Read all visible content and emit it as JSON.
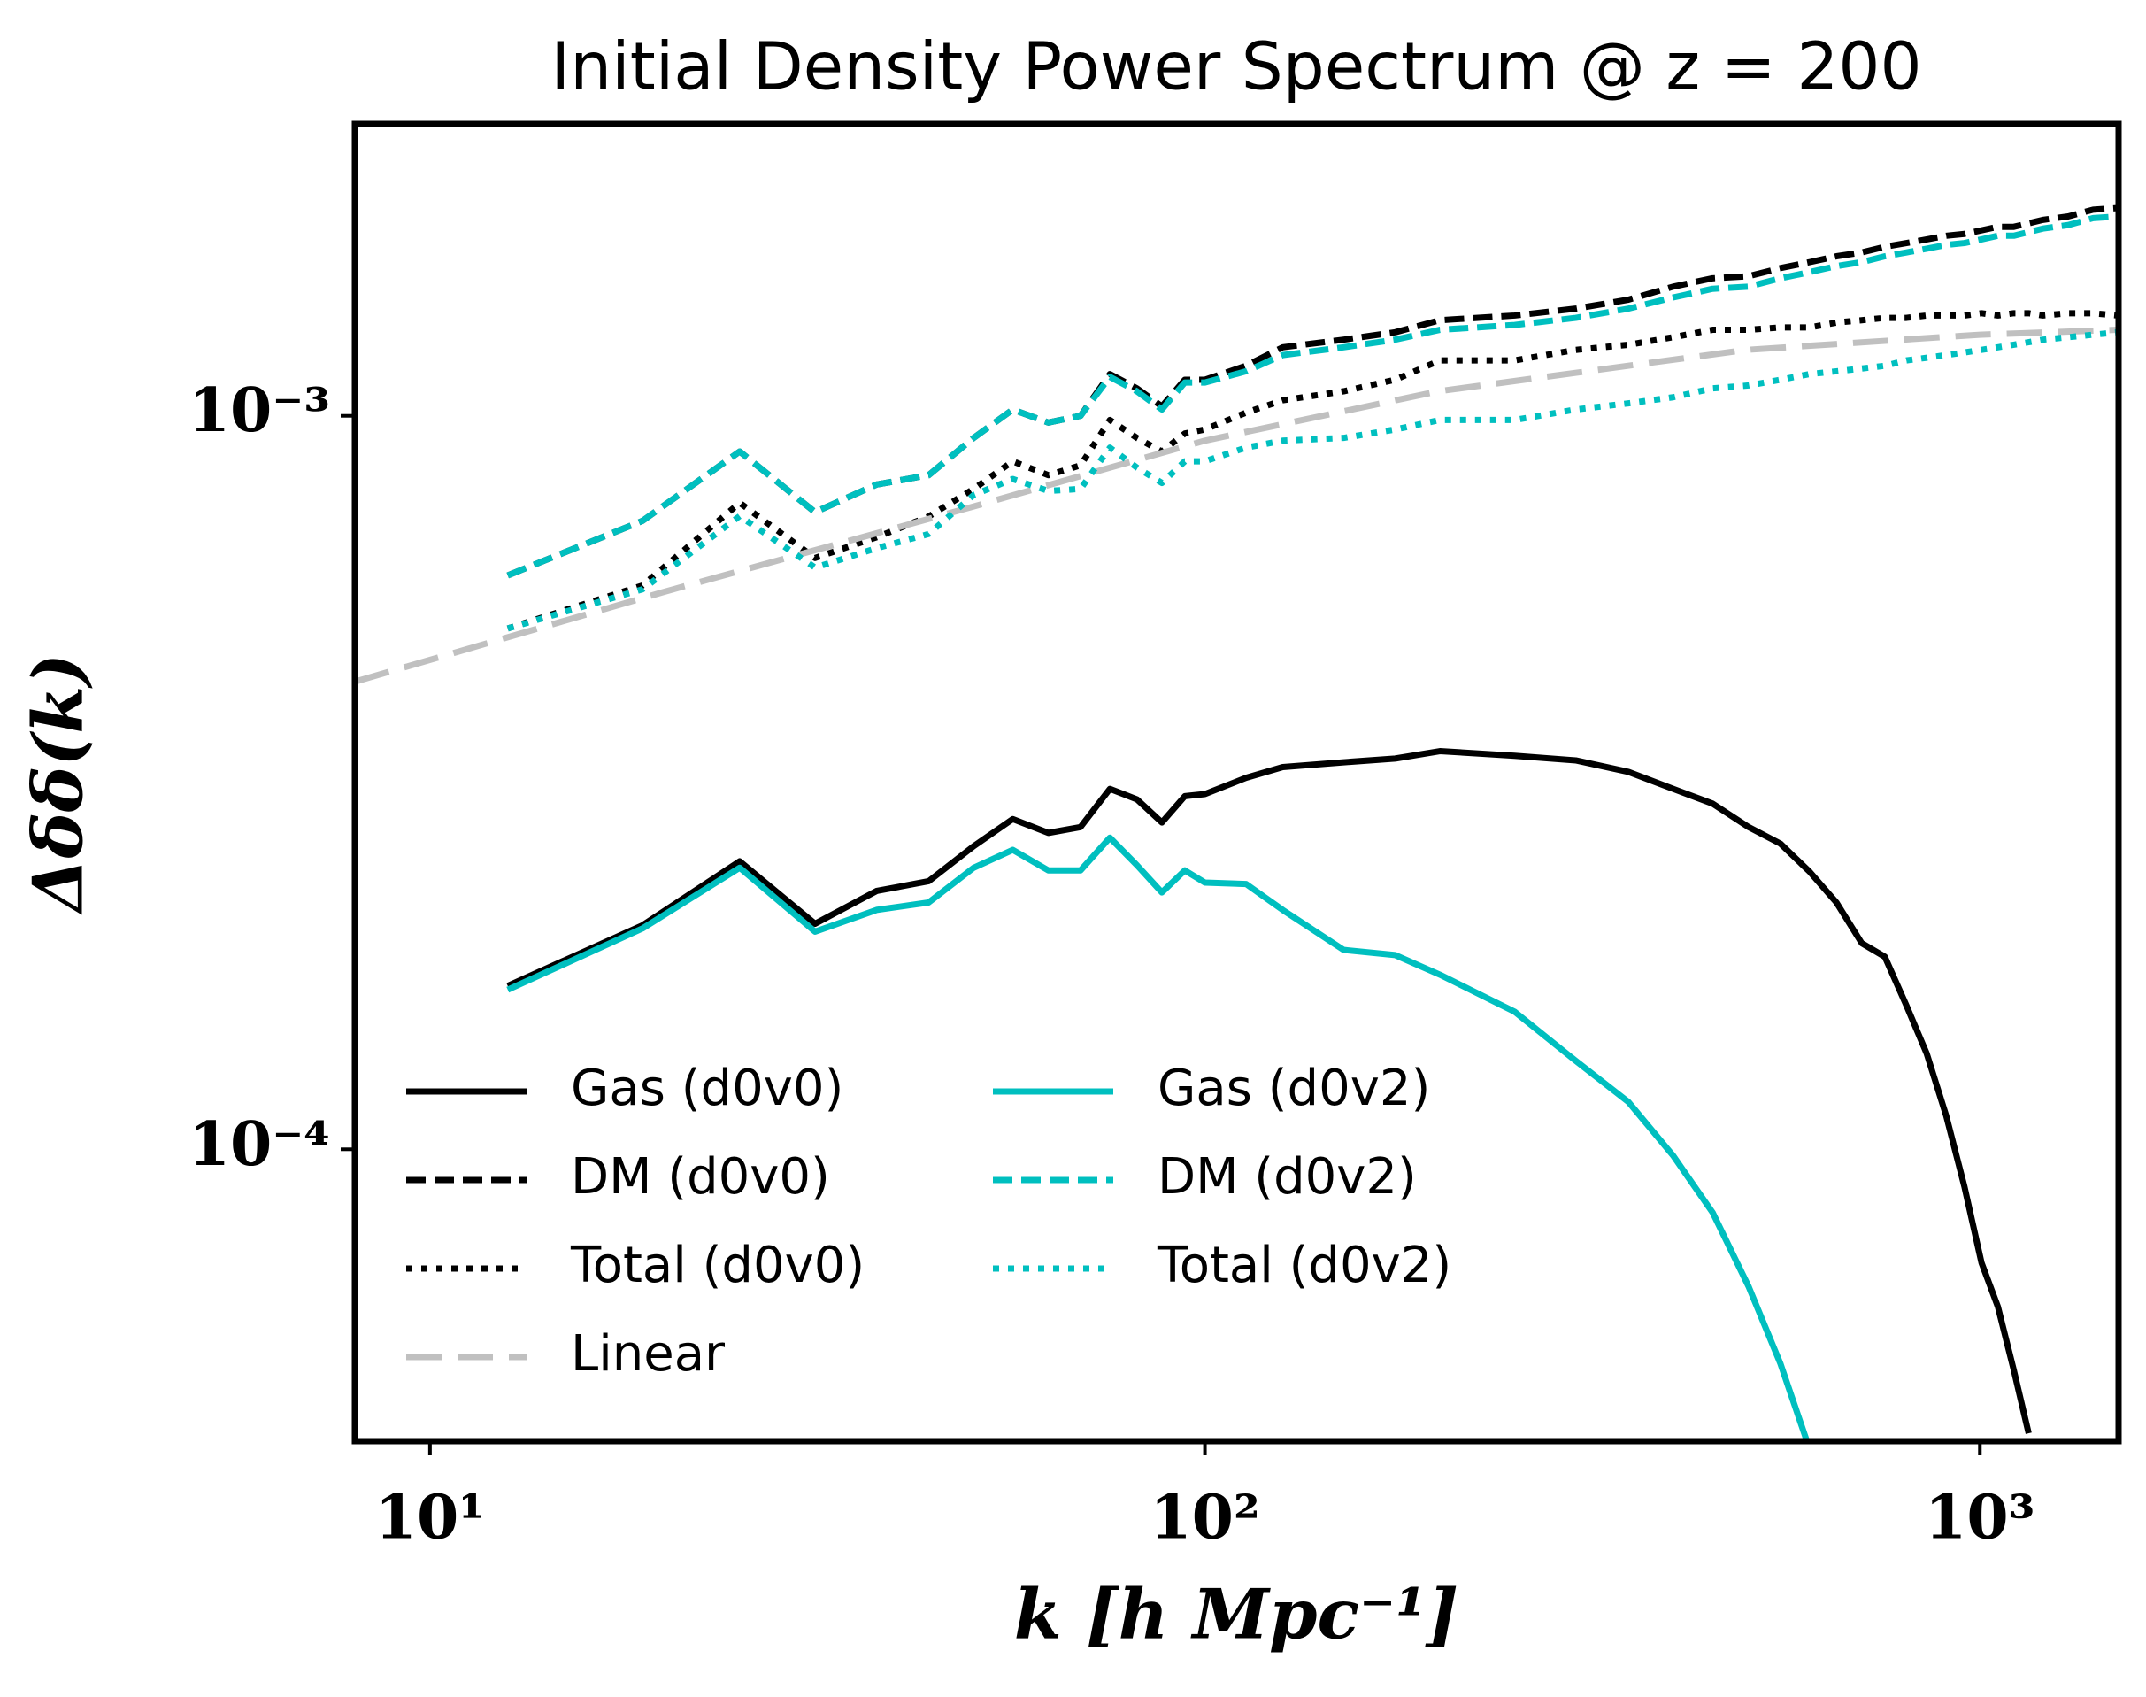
{
  "chart_data": {
    "type": "line",
    "title": "Initial Density Power Spectrum @ z = 200",
    "xlabel": "k [h Mpc⁻¹]",
    "ylabel": "Δδδ(k)",
    "xscale": "log",
    "yscale": "log",
    "xlim": [
      8,
      1510
    ],
    "ylim": [
      4e-05,
      0.0025
    ],
    "xticks": [
      {
        "value": 10,
        "label": "10¹"
      },
      {
        "value": 100,
        "label": "10²"
      },
      {
        "value": 1000,
        "label": "10³"
      }
    ],
    "yticks": [
      {
        "value": 0.0001,
        "label": "10⁻⁴"
      },
      {
        "value": 0.001,
        "label": "10⁻³"
      }
    ],
    "legend": "lower left",
    "x": [
      12.6,
      18.8,
      25.1,
      31.4,
      37.7,
      44.0,
      50.3,
      56.5,
      62.8,
      69.1,
      75.4,
      81.7,
      88.0,
      94.2,
      100,
      113,
      126,
      151,
      176,
      201,
      251,
      301,
      352,
      402,
      452,
      503,
      553,
      603,
      653,
      704,
      754,
      804,
      854,
      905,
      955,
      1005,
      1055,
      1106,
      1156,
      1206,
      1300,
      1400,
      1508
    ],
    "series": [
      {
        "name": "Gas (d0v0)",
        "color": "#000000",
        "dash": "solid",
        "values": [
          0.000167,
          0.000202,
          0.000247,
          0.000203,
          0.000225,
          0.000232,
          0.000259,
          0.000282,
          0.00027,
          0.000275,
          0.00031,
          0.0003,
          0.000279,
          0.000303,
          0.000305,
          0.000321,
          0.000332,
          0.000337,
          0.000341,
          0.000349,
          0.000344,
          0.000339,
          0.000327,
          0.00031,
          0.000296,
          0.000275,
          0.000261,
          0.000239,
          0.000217,
          0.000191,
          0.000183,
          0.000157,
          0.000135,
          0.000111,
          8.9e-05,
          7e-05,
          6.1e-05,
          5e-05,
          4.1e-05,
          null,
          null,
          null,
          null
        ]
      },
      {
        "name": "DM (d0v0)",
        "color": "#000000",
        "dash": "dashed",
        "values": [
          0.000606,
          0.000719,
          0.000894,
          0.000739,
          0.000806,
          0.00083,
          0.000933,
          0.00102,
          0.000979,
          0.001,
          0.00114,
          0.00109,
          0.00103,
          0.00112,
          0.00112,
          0.00117,
          0.00124,
          0.00127,
          0.0013,
          0.00135,
          0.00137,
          0.0014,
          0.00144,
          0.0015,
          0.00154,
          0.00155,
          0.00159,
          0.00162,
          0.00165,
          0.00167,
          0.0017,
          0.00172,
          0.00174,
          0.00176,
          0.00177,
          0.00179,
          0.00181,
          0.00181,
          0.00183,
          0.00185,
          0.00187,
          0.00191,
          0.00192
        ]
      },
      {
        "name": "Total (d0v0)",
        "color": "#000000",
        "dash": "dotted",
        "values": [
          0.000513,
          0.000587,
          0.000761,
          0.00064,
          0.000683,
          0.000729,
          0.000795,
          0.000867,
          0.00083,
          0.000856,
          0.000987,
          0.000933,
          0.000894,
          0.000946,
          0.000958,
          0.00101,
          0.00105,
          0.00108,
          0.00112,
          0.00119,
          0.00119,
          0.00123,
          0.00125,
          0.00128,
          0.00131,
          0.00131,
          0.00132,
          0.00132,
          0.00134,
          0.00135,
          0.00136,
          0.00136,
          0.00137,
          0.00137,
          0.00137,
          0.00138,
          0.00137,
          0.00138,
          0.00138,
          0.00137,
          0.00138,
          0.00138,
          0.00137
        ]
      },
      {
        "name": "Linear",
        "color": "#c0c0c0",
        "dash": "longdash",
        "x": [
          8,
          20,
          50,
          100,
          200,
          500,
          1000,
          1508
        ],
        "values": [
          0.000434,
          0.000575,
          0.000751,
          0.000925,
          0.00108,
          0.00123,
          0.00129,
          0.00131
        ]
      },
      {
        "name": "Gas (d0v2)",
        "color": "#00bfbf",
        "dash": "solid",
        "values": [
          0.000165,
          0.0002,
          0.000242,
          0.000198,
          0.000212,
          0.000217,
          0.000242,
          0.000256,
          0.00024,
          0.00024,
          0.000266,
          0.000244,
          0.000224,
          0.00024,
          0.000231,
          0.00023,
          0.000212,
          0.000187,
          0.000184,
          0.000173,
          0.000154,
          0.000132,
          0.000116,
          9.8e-05,
          8.2e-05,
          6.5e-05,
          5.1e-05,
          3.9e-05,
          null,
          null,
          null,
          null,
          null,
          null,
          null,
          null,
          null,
          null,
          null,
          null,
          null,
          null,
          null
        ]
      },
      {
        "name": "DM (d0v2)",
        "color": "#00bfbf",
        "dash": "dashed",
        "values": [
          0.000606,
          0.000719,
          0.000894,
          0.000739,
          0.000806,
          0.00083,
          0.000933,
          0.00102,
          0.000979,
          0.001,
          0.00113,
          0.00108,
          0.00102,
          0.00111,
          0.00111,
          0.00115,
          0.00121,
          0.00124,
          0.00127,
          0.00131,
          0.00133,
          0.00136,
          0.0014,
          0.00145,
          0.00149,
          0.0015,
          0.00154,
          0.00157,
          0.0016,
          0.00162,
          0.00165,
          0.00167,
          0.00169,
          0.00171,
          0.00172,
          0.00174,
          0.00176,
          0.00176,
          0.00178,
          0.0018,
          0.00182,
          0.00186,
          0.00187
        ]
      },
      {
        "name": "Total (d0v2)",
        "color": "#00bfbf",
        "dash": "dotted",
        "values": [
          0.000513,
          0.00058,
          0.00073,
          0.000621,
          0.00066,
          0.00069,
          0.00078,
          0.00082,
          0.00079,
          0.000795,
          0.000905,
          0.00085,
          0.00081,
          0.000867,
          0.000867,
          0.000905,
          0.000925,
          0.000933,
          0.000958,
          0.000987,
          0.000987,
          0.00102,
          0.00104,
          0.00106,
          0.00109,
          0.0011,
          0.00112,
          0.00114,
          0.00115,
          0.00116,
          0.00117,
          0.00119,
          0.0012,
          0.00121,
          0.00122,
          0.00123,
          0.00124,
          0.00125,
          0.00126,
          0.00127,
          0.00128,
          0.00129,
          0.0013
        ]
      }
    ]
  }
}
